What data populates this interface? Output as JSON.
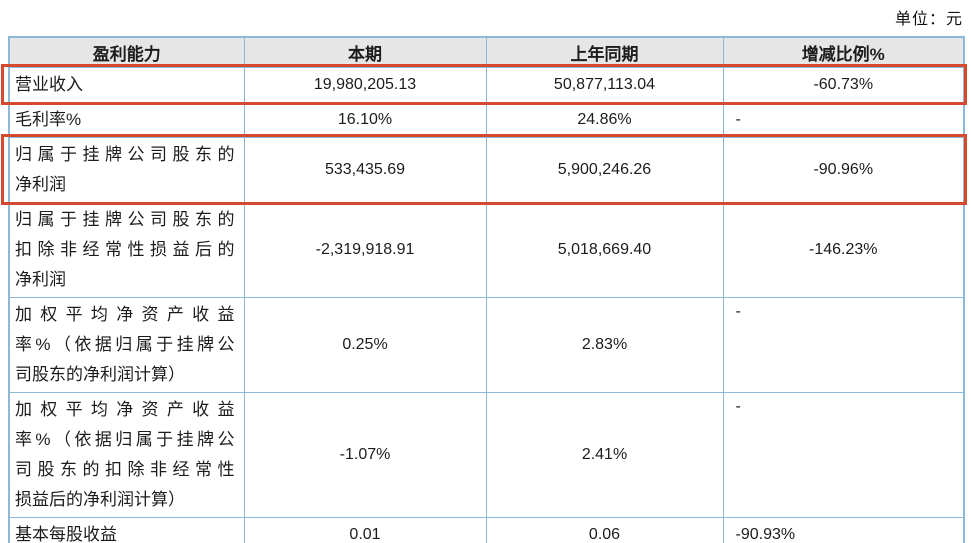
{
  "unit_label": "单位：元",
  "colors": {
    "accent_red": "#d5492f",
    "border_blue": "#8db8d8",
    "header_bg": "#e6e6e6"
  },
  "table": {
    "headers": [
      "盈利能力",
      "本期",
      "上年同期",
      "增减比例%"
    ],
    "rows": [
      {
        "label_lines": [
          "营业收入"
        ],
        "current": "19,980,205.13",
        "prior": "50,877,113.04",
        "change": "-60.73%",
        "change_align": "center",
        "change_valign": "middle",
        "highlighted": true
      },
      {
        "label_lines": [
          "毛利率%"
        ],
        "current": "16.10%",
        "prior": "24.86%",
        "change": "-",
        "change_align": "left",
        "change_valign": "middle",
        "highlighted": false
      },
      {
        "label_lines": [
          "归属于挂牌公司股东的",
          "净利润"
        ],
        "current": "533,435.69",
        "prior": "5,900,246.26",
        "change": "-90.96%",
        "change_align": "center",
        "change_valign": "middle",
        "highlighted": true
      },
      {
        "label_lines": [
          "归属于挂牌公司股东的",
          "扣除非经常性损益后的",
          "净利润"
        ],
        "current": "-2,319,918.91",
        "prior": "5,018,669.40",
        "change": "-146.23%",
        "change_align": "center",
        "change_valign": "middle",
        "highlighted": false
      },
      {
        "label_lines": [
          "加权平均净资产收益",
          "率%（依据归属于挂牌公",
          "司股东的净利润计算）"
        ],
        "current": "0.25%",
        "prior": "2.83%",
        "change": "-",
        "change_align": "left",
        "change_valign": "top",
        "highlighted": false
      },
      {
        "label_lines": [
          "加权平均净资产收益",
          "率%（依据归属于挂牌公",
          "司股东的扣除非经常性",
          "损益后的净利润计算）"
        ],
        "current": "-1.07%",
        "prior": "2.41%",
        "change": "-",
        "change_align": "left",
        "change_valign": "top",
        "highlighted": false
      },
      {
        "label_lines": [
          "基本每股收益"
        ],
        "current": "0.01",
        "prior": "0.06",
        "change": "-90.93%",
        "change_align": "left",
        "change_valign": "middle",
        "highlighted": false
      }
    ]
  }
}
